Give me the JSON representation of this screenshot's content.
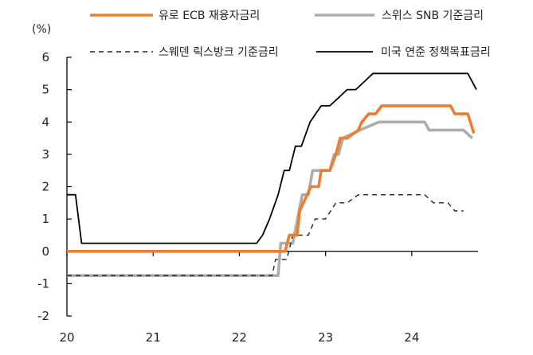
{
  "chart_data": {
    "type": "line",
    "unit": "(%)",
    "ylim": [
      -2,
      6
    ],
    "yticks": [
      -2,
      -1,
      0,
      1,
      2,
      3,
      4,
      5,
      6
    ],
    "xlim": [
      2020.0,
      2024.75
    ],
    "xticks": [
      "20",
      "21",
      "22",
      "23",
      "24"
    ],
    "grid": false,
    "legend_position": "top",
    "series": [
      {
        "name": "유로 ECB 재융자금리",
        "color": "#ED7D31",
        "style": "solid",
        "points": [
          [
            2020.0,
            0.0
          ],
          [
            2022.53,
            0.0
          ],
          [
            2022.58,
            0.5
          ],
          [
            2022.67,
            0.5
          ],
          [
            2022.7,
            1.25
          ],
          [
            2022.83,
            2.0
          ],
          [
            2022.92,
            2.0
          ],
          [
            2022.95,
            2.5
          ],
          [
            2023.05,
            2.5
          ],
          [
            2023.12,
            3.0
          ],
          [
            2023.17,
            3.5
          ],
          [
            2023.25,
            3.5
          ],
          [
            2023.38,
            3.75
          ],
          [
            2023.42,
            4.0
          ],
          [
            2023.5,
            4.25
          ],
          [
            2023.58,
            4.25
          ],
          [
            2023.65,
            4.5
          ],
          [
            2024.45,
            4.5
          ],
          [
            2024.5,
            4.25
          ],
          [
            2024.65,
            4.25
          ],
          [
            2024.72,
            3.65
          ]
        ]
      },
      {
        "name": "스위스 SNB 기준금리",
        "color": "#ADADAD",
        "style": "solid",
        "points": [
          [
            2020.0,
            -0.75
          ],
          [
            2022.45,
            -0.75
          ],
          [
            2022.48,
            0.25
          ],
          [
            2022.62,
            0.25
          ],
          [
            2022.73,
            1.75
          ],
          [
            2022.8,
            1.75
          ],
          [
            2022.85,
            2.5
          ],
          [
            2023.05,
            2.5
          ],
          [
            2023.1,
            3.0
          ],
          [
            2023.15,
            3.0
          ],
          [
            2023.2,
            3.5
          ],
          [
            2023.4,
            3.75
          ],
          [
            2023.62,
            4.0
          ],
          [
            2024.15,
            4.0
          ],
          [
            2024.2,
            3.75
          ],
          [
            2024.6,
            3.75
          ],
          [
            2024.7,
            3.5
          ]
        ]
      },
      {
        "name": "스웨덴 릭스방크 기준금리",
        "color": "#222222",
        "style": "dashed",
        "points": [
          [
            2020.0,
            -0.75
          ],
          [
            2022.38,
            -0.75
          ],
          [
            2022.42,
            -0.25
          ],
          [
            2022.55,
            -0.25
          ],
          [
            2022.62,
            0.5
          ],
          [
            2022.8,
            0.5
          ],
          [
            2022.88,
            1.0
          ],
          [
            2023.0,
            1.0
          ],
          [
            2023.12,
            1.5
          ],
          [
            2023.25,
            1.5
          ],
          [
            2023.38,
            1.75
          ],
          [
            2024.15,
            1.75
          ],
          [
            2024.25,
            1.5
          ],
          [
            2024.42,
            1.5
          ],
          [
            2024.5,
            1.25
          ],
          [
            2024.6,
            1.25
          ]
        ]
      },
      {
        "name": "미국 연준 정책목표금리",
        "color": "#000000",
        "style": "solid",
        "points": [
          [
            2020.0,
            1.75
          ],
          [
            2020.1,
            1.75
          ],
          [
            2020.17,
            0.25
          ],
          [
            2022.2,
            0.25
          ],
          [
            2022.27,
            0.5
          ],
          [
            2022.35,
            1.0
          ],
          [
            2022.45,
            1.75
          ],
          [
            2022.52,
            2.5
          ],
          [
            2022.58,
            2.5
          ],
          [
            2022.65,
            3.25
          ],
          [
            2022.72,
            3.25
          ],
          [
            2022.82,
            4.0
          ],
          [
            2022.95,
            4.5
          ],
          [
            2023.05,
            4.5
          ],
          [
            2023.15,
            4.75
          ],
          [
            2023.25,
            5.0
          ],
          [
            2023.35,
            5.0
          ],
          [
            2023.45,
            5.25
          ],
          [
            2023.55,
            5.5
          ],
          [
            2024.65,
            5.5
          ],
          [
            2024.75,
            5.0
          ]
        ]
      }
    ]
  }
}
